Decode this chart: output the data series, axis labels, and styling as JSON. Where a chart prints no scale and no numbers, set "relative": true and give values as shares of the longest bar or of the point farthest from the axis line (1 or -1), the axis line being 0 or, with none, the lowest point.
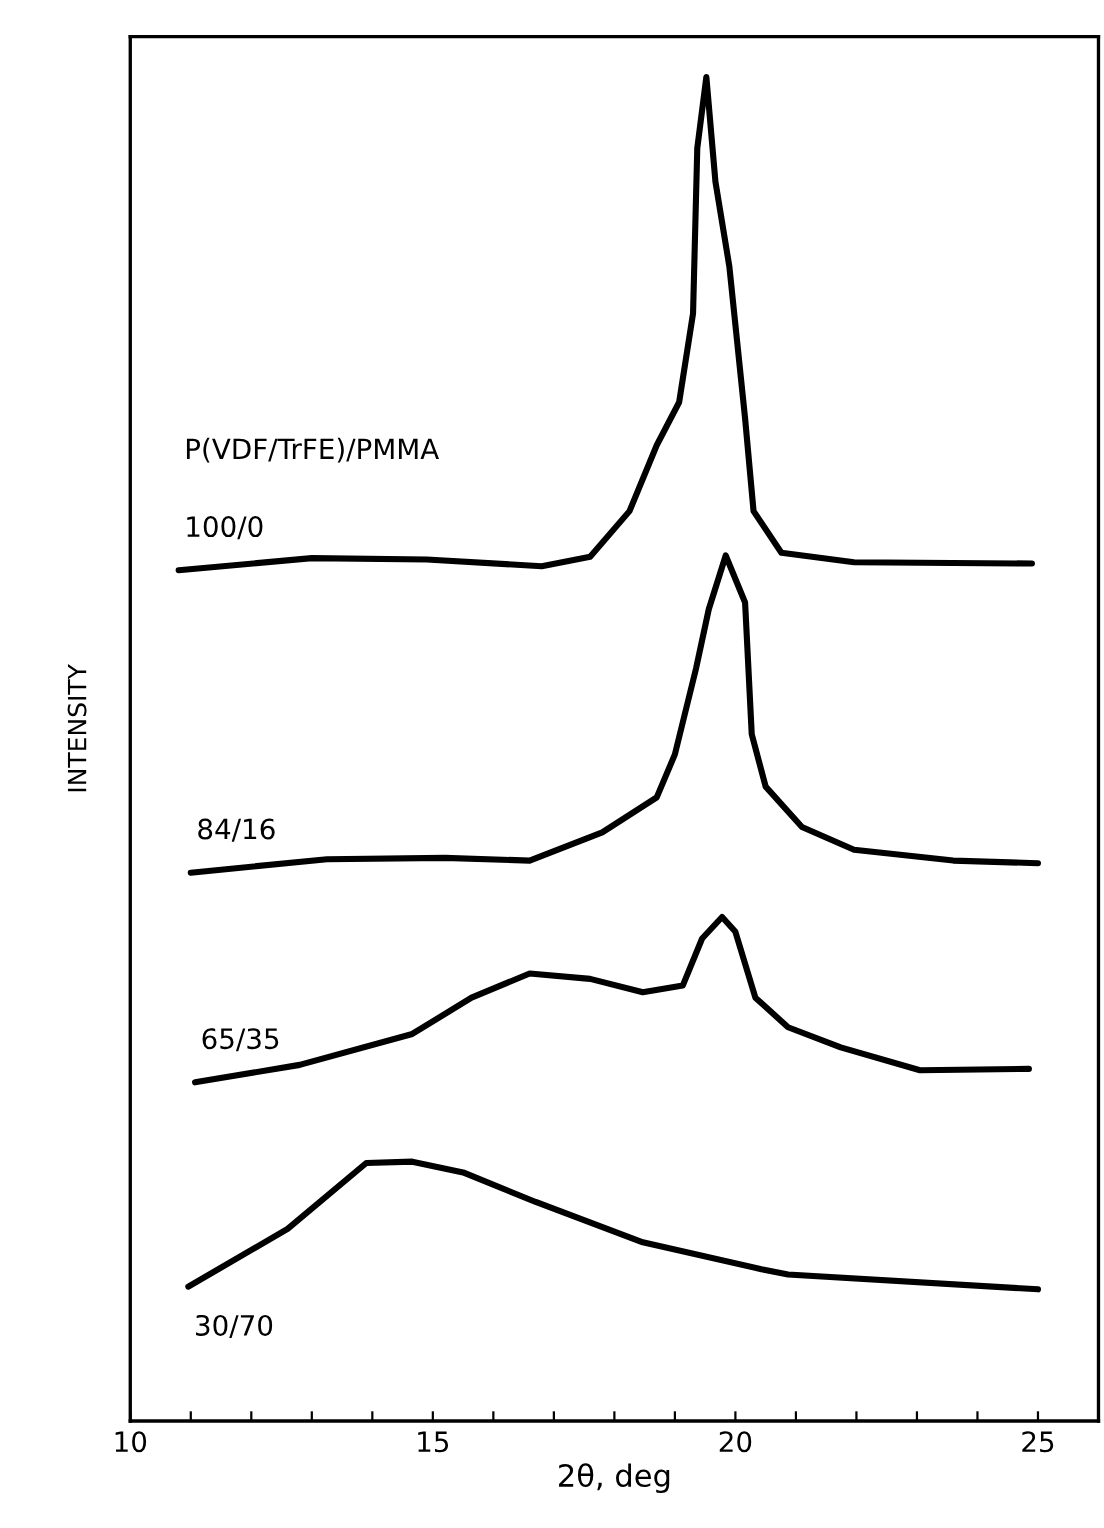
{
  "chart_data": {
    "type": "line",
    "relative": true,
    "xlabel": "2θ, deg",
    "ylabel": "INTENSITY",
    "annotations": [
      "P(VDF/TrFE)/PMMA"
    ],
    "xlim": [
      10,
      26
    ],
    "xticks": [
      10,
      {
        "value": 11,
        "label": null
      },
      {
        "value": 12,
        "label": null
      },
      {
        "value": 13,
        "label": null
      },
      {
        "value": 14,
        "label": null
      },
      15,
      {
        "value": 16,
        "label": null
      },
      {
        "value": 17,
        "label": null
      },
      {
        "value": 18,
        "label": null
      },
      {
        "value": 19,
        "label": null
      },
      20,
      {
        "value": 21,
        "label": null
      },
      {
        "value": 22,
        "label": null
      },
      {
        "value": 23,
        "label": null
      },
      {
        "value": 24,
        "label": null
      },
      25
    ],
    "tick_labels": "x",
    "grid": false,
    "line_style": "solid",
    "marker": "none",
    "series": [
      {
        "name": "100/0",
        "color": "#000000",
        "x": [
          10.8,
          13.0,
          14.9,
          16.8,
          17.6,
          18.25,
          18.7,
          19.07,
          19.3,
          19.37,
          19.52,
          19.67,
          19.9,
          20.16,
          20.3,
          20.76,
          21.96,
          24.9
        ],
        "values": [
          0.633,
          0.642,
          0.641,
          0.636,
          0.643,
          0.677,
          0.726,
          0.758,
          0.824,
          0.947,
          1.0,
          0.922,
          0.859,
          0.746,
          0.677,
          0.646,
          0.639,
          0.638
        ]
      },
      {
        "name": "84/16",
        "color": "#000000",
        "x": [
          11.0,
          13.25,
          15.2,
          16.6,
          17.8,
          18.7,
          19.0,
          19.35,
          19.56,
          19.84,
          20.16,
          20.27,
          20.5,
          21.1,
          21.96,
          23.6,
          25.0
        ],
        "values": [
          0.408,
          0.418,
          0.419,
          0.417,
          0.438,
          0.464,
          0.496,
          0.56,
          0.604,
          0.644,
          0.609,
          0.511,
          0.472,
          0.442,
          0.425,
          0.417,
          0.415
        ]
      },
      {
        "name": "65/35",
        "color": "#000000",
        "x": [
          11.07,
          12.8,
          14.66,
          15.64,
          16.6,
          17.6,
          18.47,
          19.13,
          19.45,
          19.78,
          20.0,
          20.33,
          20.87,
          21.74,
          23.05,
          24.85
        ],
        "values": [
          0.252,
          0.265,
          0.288,
          0.315,
          0.333,
          0.329,
          0.319,
          0.324,
          0.359,
          0.375,
          0.364,
          0.315,
          0.293,
          0.278,
          0.261,
          0.262
        ]
      },
      {
        "name": "30/70",
        "color": "#000000",
        "x": [
          10.96,
          12.6,
          13.9,
          14.66,
          15.5,
          16.7,
          18.47,
          20.43,
          20.87,
          25.0
        ],
        "values": [
          0.1,
          0.143,
          0.192,
          0.193,
          0.185,
          0.163,
          0.133,
          0.113,
          0.109,
          0.098
        ]
      }
    ]
  }
}
